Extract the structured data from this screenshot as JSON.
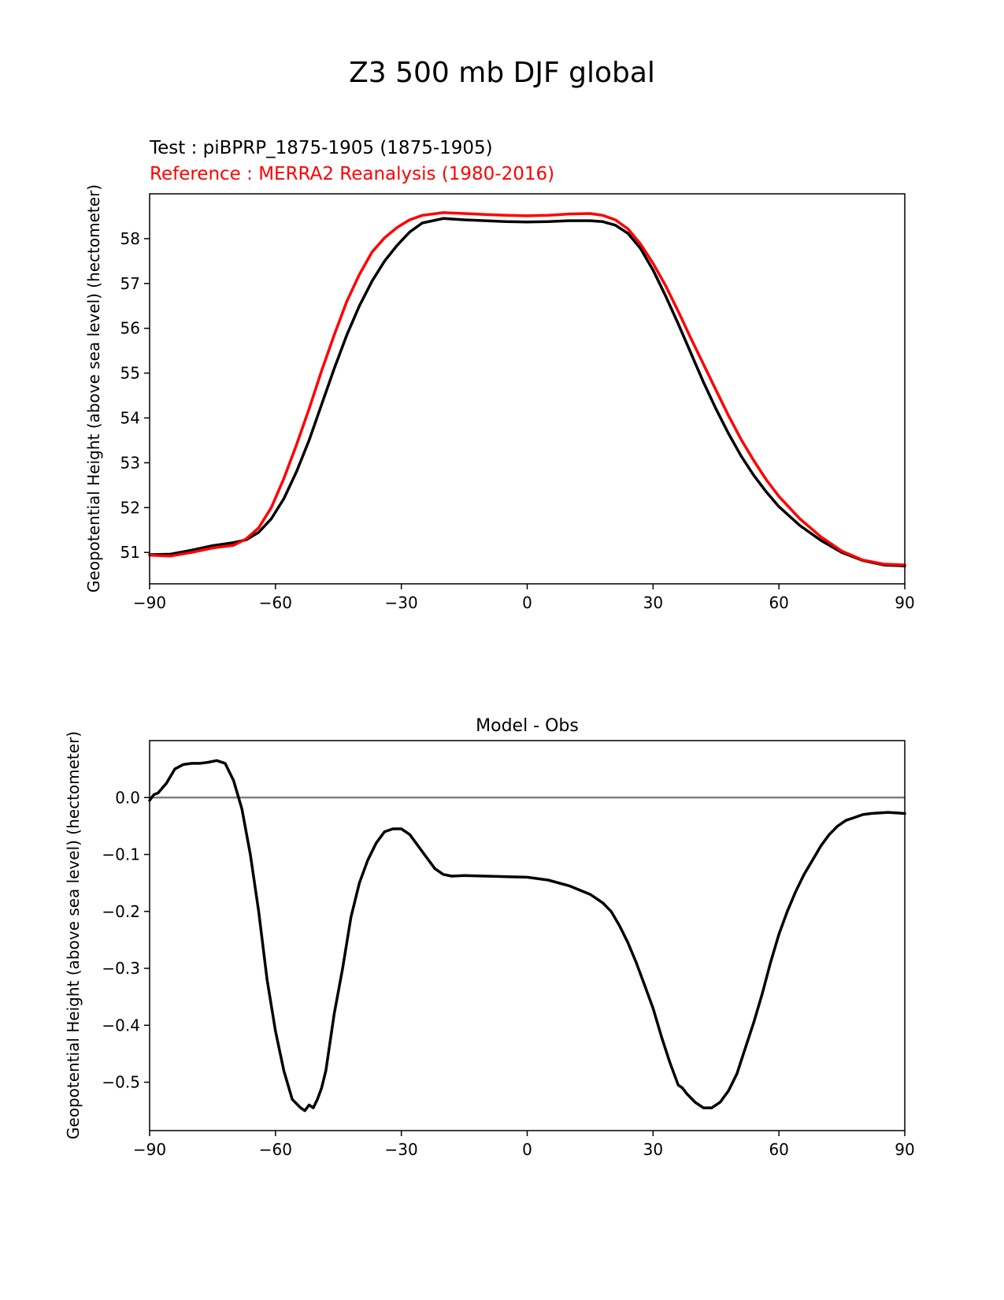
{
  "figure": {
    "title": "Z3 500 mb DJF global",
    "test_label": "Test : piBPRP_1875-1905 (1875-1905)",
    "reference_label": "Reference : MERRA2 Reanalysis (1980-2016)"
  },
  "colors": {
    "test": "#000000",
    "reference": "#ff0000",
    "zero_line": "#808080"
  },
  "chart_data": [
    {
      "type": "line",
      "title": "",
      "xlabel": "",
      "ylabel": "Geopotential Height (above sea level) (hectometer)",
      "xlim": [
        -90,
        90
      ],
      "ylim": [
        50.3,
        59.0
      ],
      "xticks": [
        -90,
        -60,
        -30,
        0,
        30,
        60,
        90
      ],
      "xtick_labels": [
        "−90",
        "−60",
        "−30",
        "0",
        "30",
        "60",
        "90"
      ],
      "yticks": [
        51,
        52,
        53,
        54,
        55,
        56,
        57,
        58
      ],
      "ytick_labels": [
        "51",
        "52",
        "53",
        "54",
        "55",
        "56",
        "57",
        "58"
      ],
      "grid": false,
      "series": [
        {
          "role": "test",
          "x": [
            -90,
            -85,
            -80,
            -75,
            -70,
            -67,
            -64,
            -61,
            -58,
            -55,
            -52,
            -49,
            -46,
            -43,
            -40,
            -37,
            -34,
            -31,
            -28,
            -25,
            -20,
            -15,
            -10,
            -5,
            0,
            5,
            10,
            15,
            18,
            21,
            24,
            27,
            30,
            33,
            36,
            39,
            42,
            45,
            48,
            51,
            54,
            57,
            60,
            65,
            70,
            75,
            80,
            85,
            90
          ],
          "y": [
            50.95,
            50.96,
            51.05,
            51.15,
            51.22,
            51.28,
            51.45,
            51.75,
            52.2,
            52.8,
            53.5,
            54.3,
            55.1,
            55.85,
            56.5,
            57.05,
            57.5,
            57.85,
            58.15,
            58.35,
            58.45,
            58.42,
            58.4,
            58.38,
            58.37,
            58.38,
            58.4,
            58.4,
            58.38,
            58.3,
            58.12,
            57.78,
            57.3,
            56.72,
            56.1,
            55.45,
            54.8,
            54.2,
            53.65,
            53.15,
            52.72,
            52.35,
            52.02,
            51.6,
            51.27,
            51.0,
            50.82,
            50.72,
            50.7
          ]
        },
        {
          "role": "reference",
          "x": [
            -90,
            -85,
            -80,
            -75,
            -70,
            -67,
            -64,
            -61,
            -58,
            -55,
            -52,
            -49,
            -46,
            -43,
            -40,
            -37,
            -34,
            -31,
            -28,
            -25,
            -20,
            -15,
            -10,
            -5,
            0,
            5,
            10,
            15,
            18,
            21,
            24,
            27,
            30,
            33,
            36,
            39,
            42,
            45,
            48,
            51,
            54,
            57,
            60,
            65,
            70,
            75,
            80,
            85,
            90
          ],
          "y": [
            50.94,
            50.92,
            51.0,
            51.1,
            51.16,
            51.3,
            51.55,
            52.0,
            52.65,
            53.4,
            54.2,
            55.05,
            55.85,
            56.6,
            57.2,
            57.7,
            58.02,
            58.25,
            58.42,
            58.52,
            58.58,
            58.56,
            58.54,
            58.52,
            58.51,
            58.52,
            58.55,
            58.56,
            58.52,
            58.42,
            58.22,
            57.88,
            57.45,
            56.95,
            56.38,
            55.78,
            55.2,
            54.62,
            54.05,
            53.52,
            53.05,
            52.62,
            52.25,
            51.75,
            51.35,
            51.03,
            50.83,
            50.74,
            50.72
          ]
        }
      ]
    },
    {
      "type": "line",
      "title": "Model - Obs",
      "xlabel": "",
      "ylabel": "Geopotential Height (above sea level) (hectometer)",
      "xlim": [
        -90,
        90
      ],
      "ylim": [
        -0.585,
        0.1
      ],
      "xticks": [
        -90,
        -60,
        -30,
        0,
        30,
        60,
        90
      ],
      "xtick_labels": [
        "−90",
        "−60",
        "−30",
        "0",
        "30",
        "60",
        "90"
      ],
      "yticks": [
        0.0,
        -0.1,
        -0.2,
        -0.3,
        -0.4,
        -0.5
      ],
      "ytick_labels": [
        "0.0",
        "−0.1",
        "−0.2",
        "−0.3",
        "−0.4",
        "−0.5"
      ],
      "zero_line": 0.0,
      "grid": false,
      "series": [
        {
          "role": "difference",
          "x": [
            -90,
            -89,
            -88,
            -86,
            -84,
            -82,
            -80,
            -78,
            -76,
            -74,
            -72,
            -70,
            -68,
            -66,
            -64,
            -62,
            -60,
            -58,
            -56,
            -54,
            -53,
            -52,
            -51,
            -50,
            -49,
            -48,
            -47,
            -46,
            -44,
            -42,
            -40,
            -38,
            -36,
            -34,
            -32,
            -30,
            -28,
            -26,
            -24,
            -22,
            -20,
            -18,
            -15,
            -10,
            -5,
            0,
            5,
            10,
            15,
            18,
            20,
            22,
            24,
            26,
            28,
            30,
            32,
            34,
            36,
            37,
            38,
            40,
            42,
            44,
            46,
            48,
            50,
            52,
            54,
            56,
            58,
            60,
            62,
            64,
            66,
            68,
            70,
            72,
            74,
            76,
            78,
            80,
            82,
            84,
            86,
            88,
            90
          ],
          "y": [
            -0.005,
            0.005,
            0.008,
            0.025,
            0.05,
            0.058,
            0.06,
            0.06,
            0.062,
            0.065,
            0.06,
            0.03,
            -0.02,
            -0.1,
            -0.2,
            -0.32,
            -0.41,
            -0.48,
            -0.53,
            -0.545,
            -0.55,
            -0.54,
            -0.545,
            -0.53,
            -0.51,
            -0.48,
            -0.43,
            -0.38,
            -0.3,
            -0.21,
            -0.15,
            -0.11,
            -0.08,
            -0.06,
            -0.055,
            -0.055,
            -0.065,
            -0.085,
            -0.105,
            -0.125,
            -0.135,
            -0.138,
            -0.137,
            -0.138,
            -0.139,
            -0.14,
            -0.145,
            -0.155,
            -0.17,
            -0.185,
            -0.2,
            -0.225,
            -0.255,
            -0.29,
            -0.33,
            -0.37,
            -0.42,
            -0.465,
            -0.505,
            -0.51,
            -0.52,
            -0.535,
            -0.545,
            -0.545,
            -0.535,
            -0.515,
            -0.485,
            -0.44,
            -0.395,
            -0.345,
            -0.29,
            -0.24,
            -0.2,
            -0.165,
            -0.135,
            -0.11,
            -0.085,
            -0.065,
            -0.05,
            -0.04,
            -0.035,
            -0.03,
            -0.028,
            -0.027,
            -0.026,
            -0.027,
            -0.028
          ]
        }
      ]
    }
  ]
}
